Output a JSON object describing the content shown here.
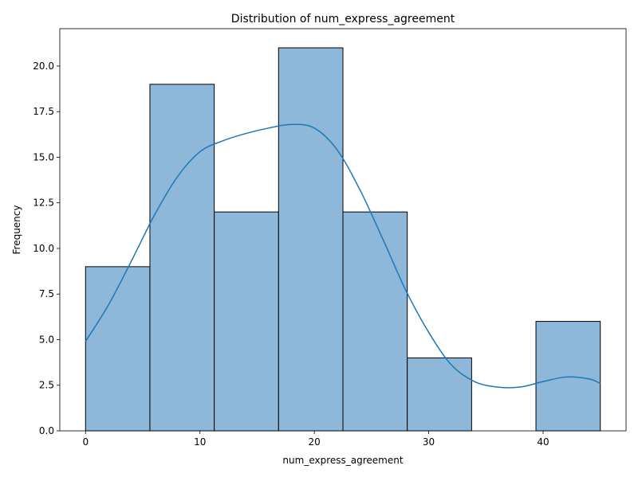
{
  "chart_data": {
    "type": "bar",
    "title": "Distribution of num_express_agreement",
    "xlabel": "num_express_agreement",
    "ylabel": "Frequency",
    "xlim": [
      -2.25,
      47.25
    ],
    "ylim": [
      0,
      22.05
    ],
    "xticks": [
      0,
      10,
      20,
      30,
      40
    ],
    "xtick_labels": [
      "0",
      "10",
      "20",
      "30",
      "40"
    ],
    "yticks": [
      0,
      2.5,
      5,
      7.5,
      10,
      12.5,
      15,
      17.5,
      20
    ],
    "ytick_labels": [
      "0.0",
      "2.5",
      "5.0",
      "7.5",
      "10.0",
      "12.5",
      "15.0",
      "17.5",
      "20.0"
    ],
    "bins": [
      {
        "x0": 0,
        "x1": 5.625,
        "count": 9
      },
      {
        "x0": 5.625,
        "x1": 11.25,
        "count": 19
      },
      {
        "x0": 11.25,
        "x1": 16.875,
        "count": 12
      },
      {
        "x0": 16.875,
        "x1": 22.5,
        "count": 21
      },
      {
        "x0": 22.5,
        "x1": 28.125,
        "count": 12
      },
      {
        "x0": 28.125,
        "x1": 33.75,
        "count": 4
      },
      {
        "x0": 33.75,
        "x1": 39.375,
        "count": 0
      },
      {
        "x0": 39.375,
        "x1": 45,
        "count": 6
      }
    ],
    "kde": {
      "x": [
        0,
        2,
        4,
        6,
        8,
        10,
        12,
        14,
        16,
        18,
        20,
        22,
        24,
        26,
        28,
        30,
        32,
        34,
        36,
        38,
        40,
        42,
        44,
        45
      ],
      "y": [
        4.9,
        6.9,
        9.3,
        11.8,
        13.9,
        15.3,
        15.9,
        16.3,
        16.6,
        16.8,
        16.6,
        15.4,
        13.2,
        10.5,
        7.7,
        5.4,
        3.6,
        2.7,
        2.4,
        2.4,
        2.7,
        2.95,
        2.85,
        2.6
      ]
    },
    "grid": false,
    "legend": "none",
    "bar_fill": "#8db8da",
    "bar_edge": "#000000",
    "kde_color": "#1f77b4"
  }
}
